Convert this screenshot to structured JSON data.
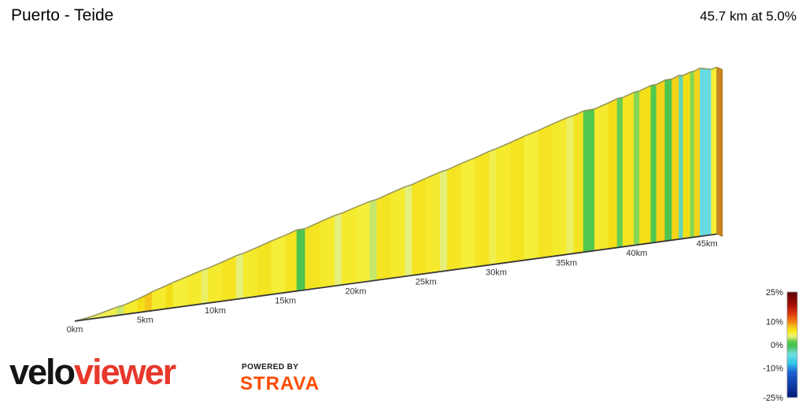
{
  "header": {
    "title": "Puerto - Teide",
    "summary": "45.7 km at 5.0%"
  },
  "footer": {
    "logo_velo": "velo",
    "logo_viewer": "viewer",
    "powered_by": "POWERED BY",
    "strava": "STRAVA"
  },
  "colors": {
    "logo_red": "#E8382C",
    "strava_orange": "#FC4C02",
    "profile_edge_olive": "#8f8f58",
    "baseline_dark": "#383838",
    "end_face_orange": "#C9841F"
  },
  "chart_data": {
    "type": "area",
    "title": "Puerto - Teide elevation profile colored by gradient",
    "total_km": 45.7,
    "avg_gradient_pct": 5.0,
    "start_elevation_m": 0,
    "x_ticks": [
      {
        "km": 0,
        "label": "0km"
      },
      {
        "km": 5,
        "label": "5km"
      },
      {
        "km": 10,
        "label": "10km"
      },
      {
        "km": 15,
        "label": "15km"
      },
      {
        "km": 20,
        "label": "20km"
      },
      {
        "km": 25,
        "label": "25km"
      },
      {
        "km": 30,
        "label": "30km"
      },
      {
        "km": 35,
        "label": "35km"
      },
      {
        "km": 40,
        "label": "40km"
      },
      {
        "km": 45,
        "label": "45km"
      }
    ],
    "segments": [
      {
        "from": 0,
        "to": 1,
        "grad": 2.5
      },
      {
        "from": 1,
        "to": 2,
        "grad": 4
      },
      {
        "from": 2,
        "to": 3,
        "grad": 4.5
      },
      {
        "from": 3,
        "to": 3.5,
        "grad": 3
      },
      {
        "from": 3.5,
        "to": 4.5,
        "grad": 5.5
      },
      {
        "from": 4.5,
        "to": 5,
        "grad": 6.5
      },
      {
        "from": 5,
        "to": 5.5,
        "grad": 7.5
      },
      {
        "from": 5.5,
        "to": 6.5,
        "grad": 5.5
      },
      {
        "from": 6.5,
        "to": 7,
        "grad": 6.5
      },
      {
        "from": 7,
        "to": 8,
        "grad": 5
      },
      {
        "from": 8,
        "to": 9,
        "grad": 5.5
      },
      {
        "from": 9,
        "to": 9.5,
        "grad": 4
      },
      {
        "from": 9.5,
        "to": 10.5,
        "grad": 5.5
      },
      {
        "from": 10.5,
        "to": 11.5,
        "grad": 6
      },
      {
        "from": 11.5,
        "to": 12,
        "grad": 3.5
      },
      {
        "from": 12,
        "to": 13,
        "grad": 5.5
      },
      {
        "from": 13,
        "to": 14,
        "grad": 6
      },
      {
        "from": 14,
        "to": 15,
        "grad": 5
      },
      {
        "from": 15,
        "to": 15.8,
        "grad": 6
      },
      {
        "from": 15.8,
        "to": 16.4,
        "grad": 0.5
      },
      {
        "from": 16.4,
        "to": 17.5,
        "grad": 6
      },
      {
        "from": 17.5,
        "to": 18.5,
        "grad": 5.5
      },
      {
        "from": 18.5,
        "to": 19,
        "grad": 3.5
      },
      {
        "from": 19,
        "to": 20,
        "grad": 5.5
      },
      {
        "from": 20,
        "to": 21,
        "grad": 5
      },
      {
        "from": 21,
        "to": 21.5,
        "grad": 3
      },
      {
        "from": 21.5,
        "to": 22.5,
        "grad": 6
      },
      {
        "from": 22.5,
        "to": 23.5,
        "grad": 5.5
      },
      {
        "from": 23.5,
        "to": 24,
        "grad": 3.5
      },
      {
        "from": 24,
        "to": 25,
        "grad": 6
      },
      {
        "from": 25,
        "to": 26,
        "grad": 5.5
      },
      {
        "from": 26,
        "to": 26.5,
        "grad": 3.5
      },
      {
        "from": 26.5,
        "to": 27.5,
        "grad": 6
      },
      {
        "from": 27.5,
        "to": 28.5,
        "grad": 5
      },
      {
        "from": 28.5,
        "to": 29.5,
        "grad": 6
      },
      {
        "from": 29.5,
        "to": 30,
        "grad": 4.5
      },
      {
        "from": 30,
        "to": 31,
        "grad": 5.5
      },
      {
        "from": 31,
        "to": 32,
        "grad": 6
      },
      {
        "from": 32,
        "to": 33,
        "grad": 5
      },
      {
        "from": 33,
        "to": 34,
        "grad": 6
      },
      {
        "from": 34,
        "to": 35,
        "grad": 5.5
      },
      {
        "from": 35,
        "to": 35.5,
        "grad": 4
      },
      {
        "from": 35.5,
        "to": 36.2,
        "grad": 6
      },
      {
        "from": 36.2,
        "to": 37,
        "grad": 1
      },
      {
        "from": 37,
        "to": 38,
        "grad": 5.5
      },
      {
        "from": 38,
        "to": 38.6,
        "grad": 6.5
      },
      {
        "from": 38.6,
        "to": 39,
        "grad": 1.5
      },
      {
        "from": 39,
        "to": 39.8,
        "grad": 6
      },
      {
        "from": 39.8,
        "to": 40.2,
        "grad": 2
      },
      {
        "from": 40.2,
        "to": 41,
        "grad": 6.5
      },
      {
        "from": 41,
        "to": 41.4,
        "grad": 1
      },
      {
        "from": 41.4,
        "to": 42,
        "grad": 7
      },
      {
        "from": 42,
        "to": 42.5,
        "grad": 0.5
      },
      {
        "from": 42.5,
        "to": 43,
        "grad": 7
      },
      {
        "from": 43,
        "to": 43.3,
        "grad": -3
      },
      {
        "from": 43.3,
        "to": 43.8,
        "grad": 6.5
      },
      {
        "from": 43.8,
        "to": 44.1,
        "grad": 2
      },
      {
        "from": 44.1,
        "to": 44.5,
        "grad": 7
      },
      {
        "from": 44.5,
        "to": 45.3,
        "grad": -4.5
      },
      {
        "from": 45.3,
        "to": 45.7,
        "grad": 5
      }
    ],
    "legend": {
      "position": "bottom-right",
      "ticks": [
        {
          "label": "25%",
          "value": 25
        },
        {
          "label": "10%",
          "value": 10
        },
        {
          "label": "0%",
          "value": 0
        },
        {
          "label": "-10%",
          "value": -10
        },
        {
          "label": "-25%",
          "value": -25
        }
      ],
      "min": -25,
      "max": 25
    },
    "gradient_color_scale": [
      {
        "g": -25,
        "color": "#001875"
      },
      {
        "g": -12,
        "color": "#1E62D6"
      },
      {
        "g": -8,
        "color": "#2EC8E8"
      },
      {
        "g": -4,
        "color": "#6FDEE0"
      },
      {
        "g": -0.5,
        "color": "#46C050"
      },
      {
        "g": 1.2,
        "color": "#55C94E"
      },
      {
        "g": 2.5,
        "color": "#A5DF5A"
      },
      {
        "g": 3.5,
        "color": "#E6EF7C"
      },
      {
        "g": 5,
        "color": "#F5EF39"
      },
      {
        "g": 6.5,
        "color": "#F4DF16"
      },
      {
        "g": 8,
        "color": "#F6BB1C"
      },
      {
        "g": 10,
        "color": "#F08014"
      },
      {
        "g": 14,
        "color": "#DC3A0C"
      },
      {
        "g": 18,
        "color": "#A81005"
      },
      {
        "g": 25,
        "color": "#5A0000"
      }
    ]
  }
}
